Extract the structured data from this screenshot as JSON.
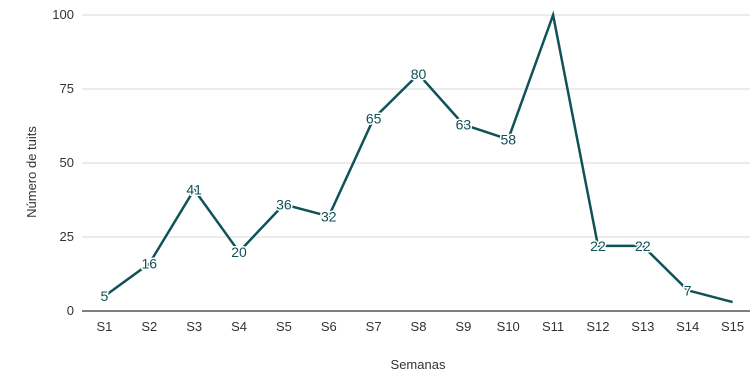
{
  "chart_data": {
    "type": "line",
    "title": "",
    "xlabel": "Semanas",
    "ylabel": "Número de tuits",
    "categories": [
      "S1",
      "S2",
      "S3",
      "S4",
      "S5",
      "S6",
      "S7",
      "S8",
      "S9",
      "S10",
      "S11",
      "S12",
      "S13",
      "S14",
      "S15"
    ],
    "series": [
      {
        "values": [
          5,
          16,
          41,
          20,
          36,
          32,
          65,
          80,
          63,
          58,
          100,
          22,
          22,
          7,
          3
        ],
        "data_labels": [
          "5",
          "16",
          "41",
          "20",
          "36",
          "32",
          "65",
          "80",
          "63",
          "58",
          "",
          "22",
          "22",
          "7",
          ""
        ],
        "color": "#0f5257"
      }
    ],
    "ylim": [
      0,
      100
    ],
    "yticks": [
      0,
      25,
      50,
      75,
      100
    ],
    "grid": true,
    "gridline_color": "#d9d9d9",
    "axis_line_color": "#333333"
  }
}
